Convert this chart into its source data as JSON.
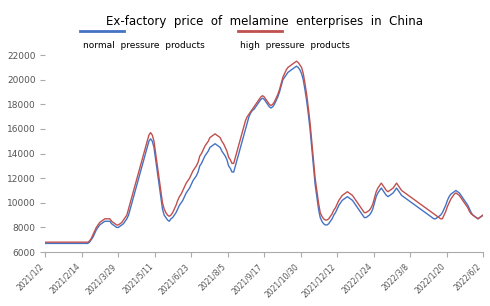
{
  "title": "Ex-factory  price  of  melamine  enterprises  in  China",
  "xlabels": [
    "2021/1/2",
    "2021/2/14",
    "2021/3/29",
    "2021/5/11",
    "2021/6/23",
    "2021/8/5",
    "2021/9/17",
    "2021/10/30",
    "2021/12/12",
    "2022/1/24",
    "2022/3/8",
    "2022/1/20",
    "2022/6/2"
  ],
  "ylim": [
    6000,
    22000
  ],
  "yticks": [
    6000,
    8000,
    10000,
    12000,
    14000,
    16000,
    18000,
    20000,
    22000
  ],
  "blue_color": "#4472C4",
  "red_color": "#C0504D",
  "background": "#FFFFFF",
  "legend_blue_label": "normal  pressure  products",
  "legend_red_label": "high  pressure  products",
  "normal_pressure": [
    6700,
    6700,
    6700,
    6700,
    6700,
    6700,
    6700,
    6700,
    6700,
    6700,
    6700,
    6700,
    6700,
    6700,
    6700,
    6700,
    6700,
    6700,
    6700,
    6700,
    6700,
    6700,
    6700,
    6700,
    6700,
    6700,
    6800,
    7000,
    7200,
    7500,
    7800,
    8000,
    8200,
    8300,
    8400,
    8500,
    8500,
    8500,
    8500,
    8300,
    8200,
    8100,
    8000,
    8000,
    8100,
    8200,
    8300,
    8500,
    8700,
    9000,
    9500,
    10000,
    10500,
    11000,
    11500,
    12000,
    12500,
    13000,
    13500,
    14000,
    14500,
    15000,
    15200,
    15000,
    14500,
    13500,
    12500,
    11500,
    10500,
    9500,
    9000,
    8800,
    8600,
    8500,
    8700,
    8800,
    9000,
    9200,
    9500,
    9800,
    10000,
    10200,
    10500,
    10800,
    11000,
    11200,
    11500,
    11800,
    12000,
    12200,
    12500,
    13000,
    13200,
    13500,
    13800,
    14000,
    14200,
    14500,
    14600,
    14700,
    14800,
    14700,
    14600,
    14500,
    14200,
    14000,
    13800,
    13500,
    13000,
    12800,
    12500,
    12500,
    13000,
    13500,
    14000,
    14500,
    15000,
    15500,
    16000,
    16500,
    17000,
    17300,
    17500,
    17600,
    17800,
    18000,
    18200,
    18400,
    18500,
    18400,
    18200,
    18000,
    17800,
    17700,
    17800,
    18000,
    18300,
    18600,
    19000,
    19500,
    20000,
    20200,
    20400,
    20600,
    20700,
    20800,
    20900,
    21000,
    21100,
    21000,
    20800,
    20500,
    20000,
    19200,
    18300,
    17200,
    16000,
    14500,
    13000,
    11500,
    10500,
    9500,
    8800,
    8500,
    8300,
    8200,
    8200,
    8300,
    8500,
    8700,
    9000,
    9200,
    9500,
    9800,
    10000,
    10200,
    10300,
    10400,
    10500,
    10400,
    10300,
    10200,
    10000,
    9800,
    9600,
    9400,
    9200,
    9000,
    8800,
    8800,
    8900,
    9000,
    9200,
    9500,
    10000,
    10500,
    10800,
    11000,
    11200,
    11000,
    10800,
    10600,
    10500,
    10600,
    10700,
    10800,
    11000,
    11200,
    11000,
    10800,
    10600,
    10500,
    10400,
    10300,
    10200,
    10100,
    10000,
    9900,
    9800,
    9700,
    9600,
    9500,
    9400,
    9300,
    9200,
    9100,
    9000,
    8900,
    8800,
    8700,
    8700,
    8800,
    8900,
    9000,
    9200,
    9500,
    9800,
    10200,
    10500,
    10700,
    10800,
    10900,
    11000,
    10900,
    10800,
    10600,
    10400,
    10200,
    10000,
    9800,
    9500,
    9200,
    9000,
    8900,
    8800,
    8700,
    8800,
    8900,
    9000
  ],
  "high_pressure": [
    6800,
    6800,
    6800,
    6800,
    6800,
    6800,
    6800,
    6800,
    6800,
    6800,
    6800,
    6800,
    6800,
    6800,
    6800,
    6800,
    6800,
    6800,
    6800,
    6800,
    6800,
    6800,
    6800,
    6800,
    6800,
    6800,
    6900,
    7100,
    7400,
    7700,
    8000,
    8200,
    8400,
    8500,
    8600,
    8700,
    8700,
    8700,
    8700,
    8500,
    8400,
    8300,
    8200,
    8200,
    8300,
    8400,
    8600,
    8800,
    9000,
    9500,
    10000,
    10500,
    11000,
    11500,
    12000,
    12500,
    13000,
    13500,
    14000,
    14500,
    15000,
    15500,
    15700,
    15500,
    15000,
    14000,
    13000,
    12000,
    11000,
    10000,
    9500,
    9200,
    9000,
    8900,
    9000,
    9200,
    9500,
    9800,
    10200,
    10500,
    10700,
    11000,
    11300,
    11600,
    11800,
    12000,
    12300,
    12600,
    12800,
    13000,
    13300,
    13800,
    14000,
    14300,
    14600,
    14800,
    15000,
    15300,
    15400,
    15500,
    15600,
    15500,
    15400,
    15300,
    15000,
    14800,
    14500,
    14200,
    13700,
    13500,
    13200,
    13200,
    13700,
    14200,
    14700,
    15200,
    15700,
    16200,
    16700,
    17000,
    17200,
    17400,
    17600,
    17800,
    18000,
    18200,
    18400,
    18600,
    18700,
    18600,
    18400,
    18200,
    18000,
    17900,
    18000,
    18200,
    18500,
    18800,
    19200,
    19700,
    20200,
    20500,
    20800,
    21000,
    21100,
    21200,
    21300,
    21400,
    21500,
    21400,
    21200,
    21000,
    20500,
    19700,
    18800,
    17700,
    16500,
    15000,
    13500,
    12000,
    11000,
    10000,
    9200,
    8900,
    8700,
    8600,
    8600,
    8700,
    8900,
    9100,
    9400,
    9600,
    9900,
    10200,
    10400,
    10600,
    10700,
    10800,
    10900,
    10800,
    10700,
    10600,
    10400,
    10200,
    10000,
    9800,
    9600,
    9400,
    9200,
    9200,
    9300,
    9400,
    9600,
    9900,
    10400,
    10900,
    11200,
    11400,
    11600,
    11400,
    11200,
    11000,
    10900,
    11000,
    11100,
    11200,
    11400,
    11600,
    11400,
    11200,
    11000,
    10900,
    10800,
    10700,
    10600,
    10500,
    10400,
    10300,
    10200,
    10100,
    10000,
    9900,
    9800,
    9700,
    9600,
    9500,
    9400,
    9300,
    9200,
    9100,
    9000,
    8900,
    8800,
    8700,
    8700,
    9000,
    9300,
    9700,
    10000,
    10300,
    10500,
    10700,
    10800,
    10700,
    10600,
    10400,
    10200,
    10000,
    9800,
    9600,
    9300,
    9100,
    9000,
    8900,
    8800,
    8700,
    8800,
    8900,
    9000
  ]
}
